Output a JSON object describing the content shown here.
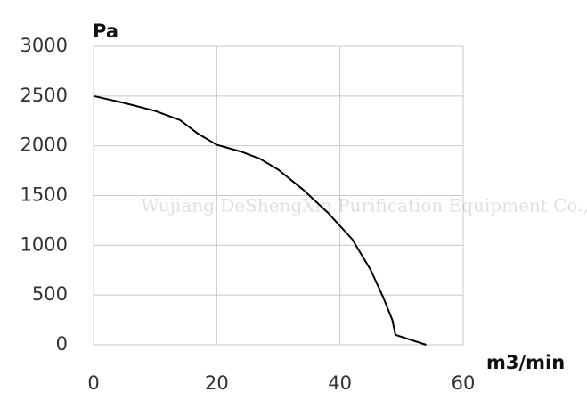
{
  "chart_data": {
    "type": "line",
    "x_label": "m3/min",
    "y_label": "Pa",
    "watermark": "Wujiang DeShengXin Purification Equipment Co.,LTD",
    "x": [
      0,
      5,
      10,
      14,
      17,
      20,
      24,
      27,
      30,
      34,
      38,
      42,
      45,
      47,
      48.5,
      49,
      51,
      54
    ],
    "series": [
      {
        "color": "#000000",
        "values": [
          2500,
          2430,
          2350,
          2260,
          2120,
          2010,
          1940,
          1870,
          1760,
          1560,
          1330,
          1060,
          750,
          480,
          250,
          100,
          60,
          0
        ]
      }
    ],
    "xlim": [
      0,
      60
    ],
    "xticks": [
      0,
      20,
      40,
      60
    ],
    "ylim": [
      0,
      3000
    ],
    "yticks": [
      0,
      500,
      1000,
      1500,
      2000,
      2500,
      3000
    ],
    "grid": true
  }
}
